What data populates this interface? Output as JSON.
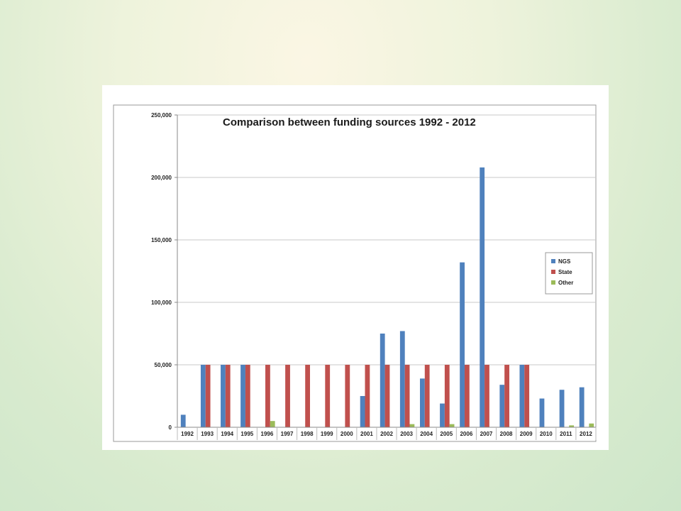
{
  "colors": {
    "NGS": "#4f81bd",
    "State": "#c0504d",
    "Other": "#9bbb59"
  },
  "chart_data": {
    "type": "bar",
    "title": "Comparison between funding sources 1992 - 2012",
    "xlabel": "",
    "ylabel": "",
    "ylim": [
      0,
      250000
    ],
    "yticks": [
      0,
      50000,
      100000,
      150000,
      200000,
      250000
    ],
    "ytick_labels": [
      "0",
      "50,000",
      "100,000",
      "150,000",
      "200,000",
      "250,000"
    ],
    "grid": true,
    "legend_position": "right",
    "categories": [
      "1992",
      "1993",
      "1994",
      "1995",
      "1996",
      "1997",
      "1998",
      "1999",
      "2000",
      "2001",
      "2002",
      "2003",
      "2004",
      "2005",
      "2006",
      "2007",
      "2008",
      "2009",
      "2010",
      "2011",
      "2012"
    ],
    "series": [
      {
        "name": "NGS",
        "values": [
          10000,
          50000,
          50000,
          50000,
          0,
          0,
          0,
          0,
          0,
          25000,
          75000,
          77000,
          39000,
          19000,
          132000,
          208000,
          34000,
          50000,
          23000,
          30000,
          32000
        ]
      },
      {
        "name": "State",
        "values": [
          0,
          50000,
          50000,
          50000,
          50000,
          50000,
          50000,
          50000,
          50000,
          50000,
          50000,
          50000,
          50000,
          50000,
          50000,
          50000,
          50000,
          50000,
          0,
          0,
          0
        ]
      },
      {
        "name": "Other",
        "values": [
          0,
          0,
          0,
          0,
          5000,
          0,
          0,
          0,
          0,
          0,
          0,
          2500,
          0,
          2500,
          0,
          0,
          0,
          0,
          0,
          1500,
          3000
        ]
      }
    ]
  }
}
